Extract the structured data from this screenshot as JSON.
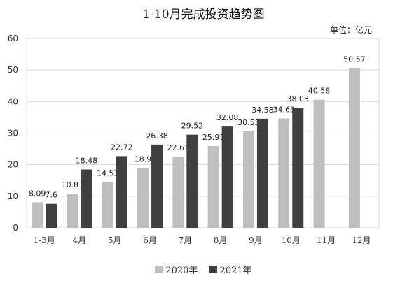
{
  "chart_data": {
    "type": "bar",
    "title": "1-10月完成投资趋势图",
    "unit_label": "单位：亿元",
    "categories": [
      "1-3月",
      "4月",
      "5月",
      "6月",
      "7月",
      "8月",
      "9月",
      "10月",
      "11月",
      "12月"
    ],
    "series": [
      {
        "name": "2020年",
        "color": "#bfbfbf",
        "values": [
          8.09,
          10.83,
          14.53,
          18.9,
          22.61,
          25.91,
          30.55,
          34.63,
          40.58,
          50.57
        ]
      },
      {
        "name": "2021年",
        "color": "#404040",
        "values": [
          7.6,
          18.48,
          22.72,
          26.38,
          29.52,
          32.08,
          34.58,
          38.03,
          null,
          null
        ]
      }
    ],
    "ylim": [
      0,
      60
    ],
    "yticks": [
      0,
      10,
      20,
      30,
      40,
      50,
      60
    ],
    "grid": true,
    "legend_position": "bottom"
  }
}
